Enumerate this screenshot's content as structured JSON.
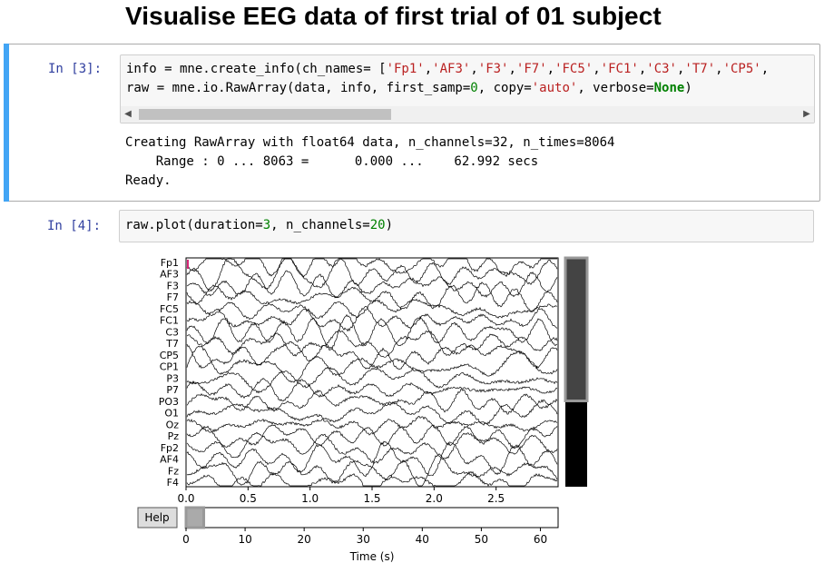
{
  "heading": "Visualise EEG data of first trial of 01 subject",
  "cell3": {
    "prompt": "In  [3]:",
    "line1_prefix": "info = mne.create_info(ch_names= [",
    "line1_strings": [
      "'Fp1'",
      "'AF3'",
      "'F3'",
      "'F7'",
      "'FC5'",
      "'FC1'",
      "'C3'",
      "'T7'",
      "'CP5'"
    ],
    "line1_sep": ",",
    "line2": {
      "a": "raw = mne.io.RawArray(data, info, first_samp=",
      "b": "0",
      "c": ", copy=",
      "d": "'auto'",
      "e": ", verbose=",
      "f": "None",
      "g": ")"
    },
    "output_lines": [
      "Creating RawArray with float64 data, n_channels=32, n_times=8064",
      "    Range : 0 ... 8063 =      0.000 ...    62.992 secs",
      "Ready."
    ],
    "scroll_left_icon": "triangle-left-icon",
    "scroll_right_icon": "triangle-right-icon"
  },
  "cell4": {
    "prompt": "In  [4]:",
    "code_a": "raw.plot(duration=",
    "code_b": "3",
    "code_c": ", n_channels=",
    "code_d": "20",
    "code_e": ")"
  },
  "plot": {
    "channels": [
      "Fp1",
      "AF3",
      "F3",
      "F7",
      "FC5",
      "FC1",
      "C3",
      "T7",
      "CP5",
      "CP1",
      "P3",
      "P7",
      "PO3",
      "O1",
      "Oz",
      "Pz",
      "Fp2",
      "AF4",
      "Fz",
      "F4"
    ],
    "time_ticks": [
      "0.0",
      "0.5",
      "1.0",
      "1.5",
      "2.0",
      "2.5"
    ],
    "time_tick_values": [
      0.0,
      0.5,
      1.0,
      1.5,
      2.0,
      2.5
    ],
    "duration": 3,
    "total_seconds": 63,
    "overview_ticks": [
      "0",
      "10",
      "20",
      "30",
      "40",
      "50",
      "60"
    ],
    "overview_tick_values": [
      0,
      10,
      20,
      30,
      40,
      50,
      60
    ],
    "overview_window": [
      0,
      3
    ],
    "channel_scroll_visible": [
      0,
      20
    ],
    "channel_scroll_total": 32,
    "xlabel": "Time (s)",
    "help_label": "Help",
    "colors": {
      "trace": "#000000",
      "marker": "#d62778",
      "scroll_dark": "#444444",
      "scroll_thumb_border": "#999999"
    }
  }
}
